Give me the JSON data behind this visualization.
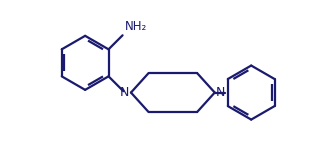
{
  "background_color": "#ffffff",
  "line_color": "#1a1a6e",
  "line_width": 1.6,
  "nh2_label": "NH₂",
  "n_label": "N",
  "figsize": [
    3.27,
    1.5
  ],
  "dpi": 100,
  "xlim": [
    0.0,
    9.5
  ],
  "ylim": [
    0.0,
    5.5
  ]
}
